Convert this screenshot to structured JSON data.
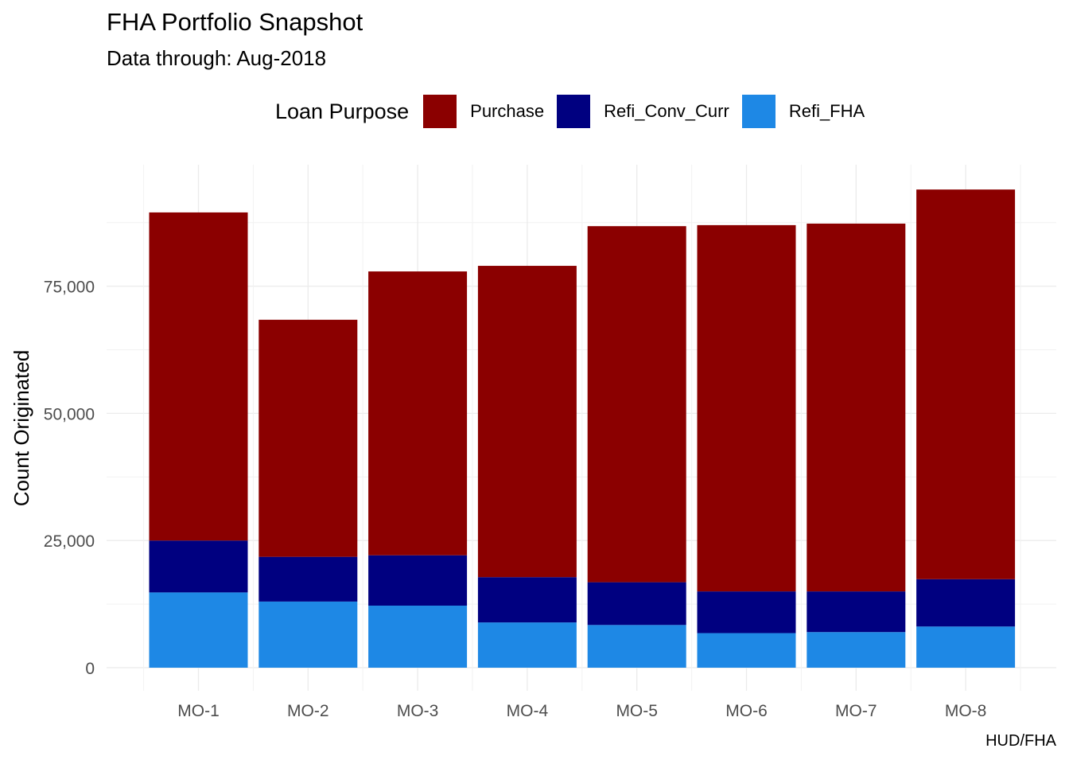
{
  "chart_data": {
    "type": "bar",
    "stacked": true,
    "title": "FHA Portfolio Snapshot",
    "subtitle": "Data through: Aug-2018",
    "caption": "HUD/FHA",
    "xlabel": "",
    "ylabel": "Count Originated",
    "ylim": [
      0,
      98000
    ],
    "yticks": [
      0,
      25000,
      50000,
      75000
    ],
    "ytick_labels": [
      "0",
      "25,000",
      "50,000",
      "75,000"
    ],
    "grid": true,
    "legend": {
      "title": "Loan Purpose",
      "position": "top"
    },
    "categories": [
      "MO-1",
      "MO-2",
      "MO-3",
      "MO-4",
      "MO-5",
      "MO-6",
      "MO-7",
      "MO-8"
    ],
    "series": [
      {
        "name": "Refi_FHA",
        "color": "#1E88E5",
        "values": [
          14800,
          13000,
          12200,
          8900,
          8400,
          6800,
          7000,
          8100
        ]
      },
      {
        "name": "Refi_Conv_Curr",
        "color": "#000080",
        "values": [
          10200,
          8800,
          9900,
          8900,
          8400,
          8200,
          8000,
          9300
        ]
      },
      {
        "name": "Purchase",
        "color": "#8B0000",
        "values": [
          64500,
          46600,
          55800,
          61200,
          70000,
          72000,
          72300,
          76600
        ]
      }
    ]
  }
}
